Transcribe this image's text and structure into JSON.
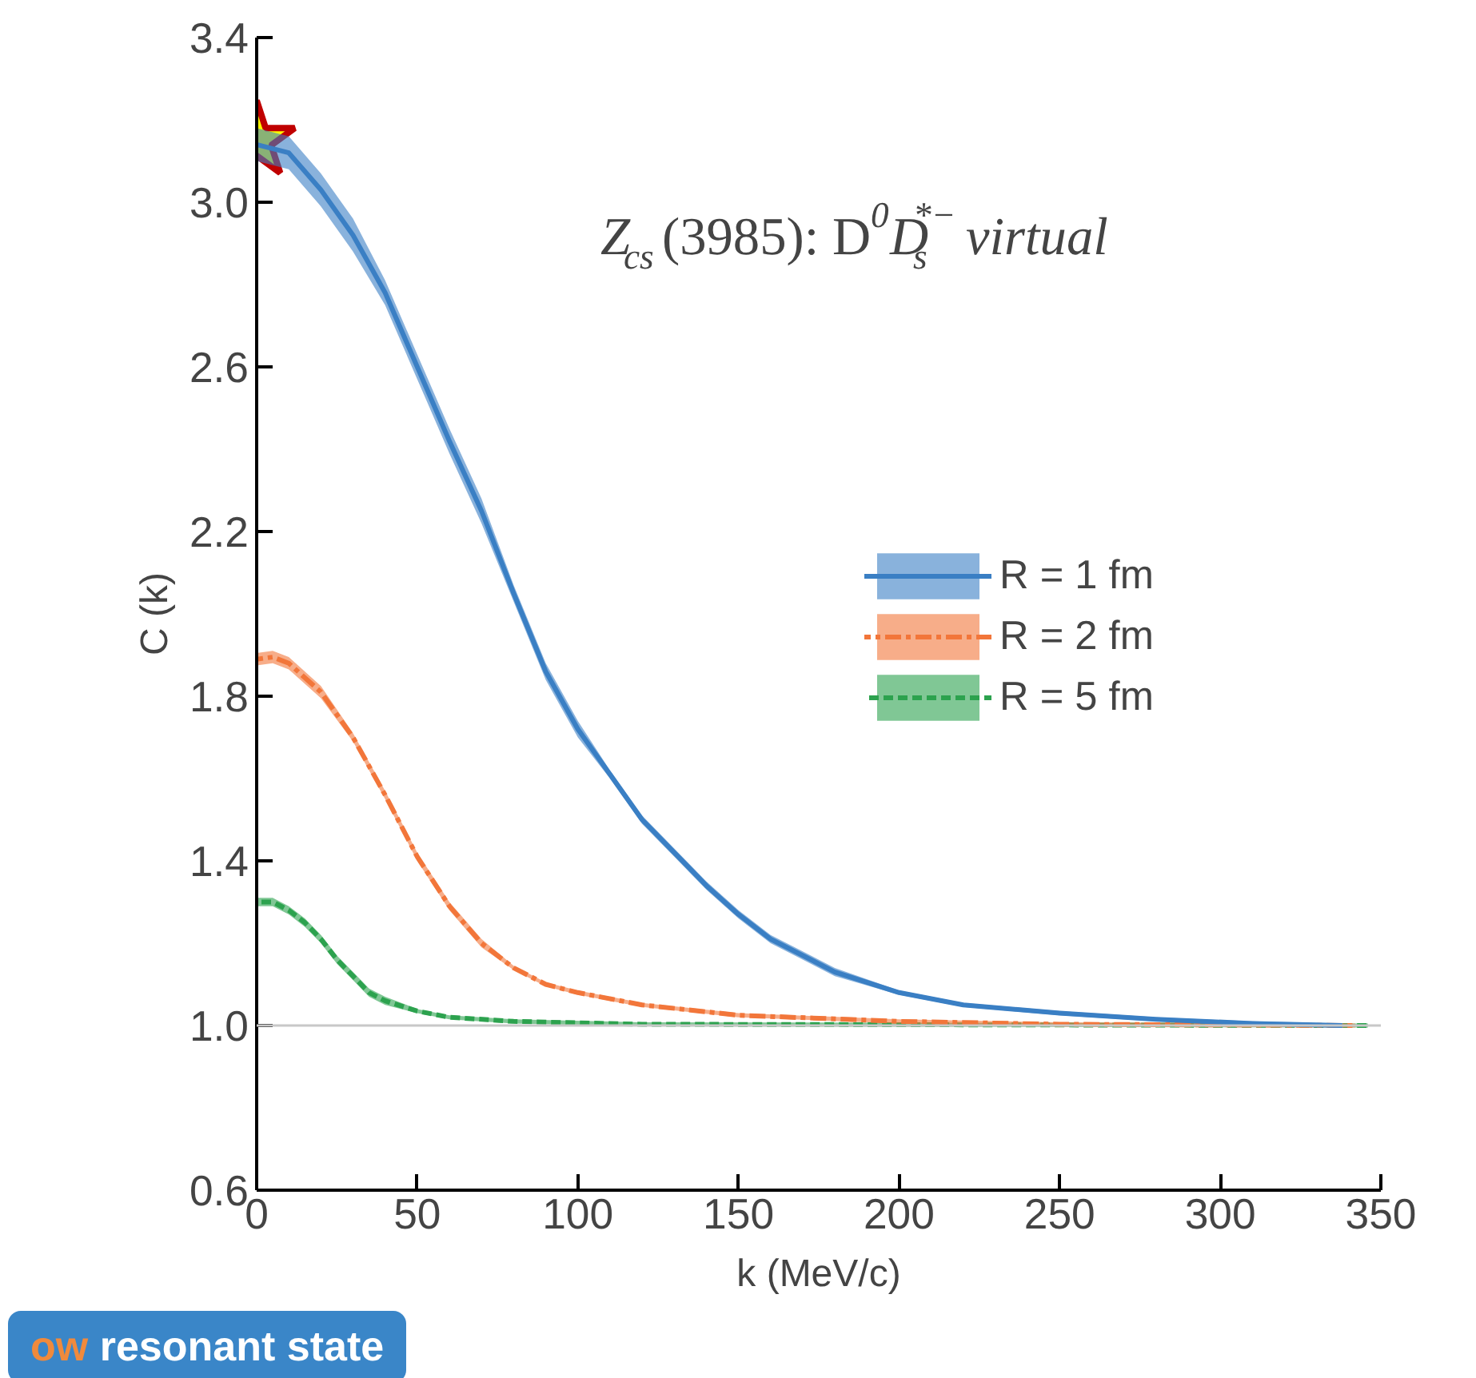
{
  "chart_data": {
    "type": "line",
    "title": "Z$_{cs}$(3985):  D$^{0}$D$_{s}$$^{*−}$ virtual",
    "xlabel": "k (MeV/c)",
    "ylabel": "C (k)",
    "xlim": [
      0,
      350
    ],
    "ylim": [
      0.6,
      3.4
    ],
    "xticks": [
      0,
      50,
      100,
      150,
      200,
      250,
      300,
      350
    ],
    "yticks": [
      {
        "value": 0.6,
        "label": "0.6"
      },
      {
        "value": 1.0,
        "label": "1.0"
      },
      1.4,
      1.8,
      2.2,
      2.6,
      {
        "value": 3.0,
        "label": "3.0"
      },
      3.4
    ],
    "grid": false,
    "legend": "right",
    "ref_lines": [
      {
        "axis": "y",
        "value": 1.0,
        "color": "#c8c8c8"
      }
    ],
    "annotations": [
      "ow resonant state"
    ],
    "series": [
      {
        "name": "R = 1 fm",
        "color": "#3a7fc4",
        "line_style": "solid",
        "x": [
          0,
          10,
          20,
          30,
          40,
          50,
          60,
          70,
          80,
          90,
          100,
          110,
          120,
          130,
          140,
          150,
          160,
          170,
          180,
          200,
          220,
          250,
          280,
          310,
          338
        ],
        "values": [
          3.14,
          3.12,
          3.03,
          2.92,
          2.78,
          2.6,
          2.42,
          2.25,
          2.05,
          1.86,
          1.72,
          1.61,
          1.5,
          1.42,
          1.34,
          1.27,
          1.21,
          1.17,
          1.13,
          1.08,
          1.05,
          1.03,
          1.015,
          1.005,
          1.0
        ],
        "lower": [
          3.1,
          3.08,
          2.99,
          2.88,
          2.75,
          2.57,
          2.39,
          2.22,
          2.03,
          1.84,
          1.7,
          1.6,
          1.49,
          1.41,
          1.33,
          1.26,
          1.2,
          1.16,
          1.12,
          1.075,
          1.045,
          1.025,
          1.01,
          1.0,
          0.995
        ],
        "upper": [
          3.18,
          3.16,
          3.07,
          2.96,
          2.81,
          2.63,
          2.45,
          2.28,
          2.07,
          1.88,
          1.74,
          1.62,
          1.51,
          1.43,
          1.35,
          1.28,
          1.22,
          1.18,
          1.14,
          1.085,
          1.055,
          1.035,
          1.02,
          1.01,
          1.005
        ]
      },
      {
        "name": "R = 2 fm",
        "color": "#f2763a",
        "line_style": "dashdot",
        "x": [
          0,
          5,
          10,
          20,
          30,
          40,
          50,
          60,
          70,
          80,
          90,
          100,
          120,
          150,
          200,
          250,
          342
        ],
        "values": [
          1.89,
          1.895,
          1.88,
          1.81,
          1.7,
          1.56,
          1.41,
          1.29,
          1.2,
          1.14,
          1.1,
          1.08,
          1.05,
          1.025,
          1.01,
          1.003,
          1.0
        ],
        "lower": [
          1.875,
          1.88,
          1.865,
          1.795,
          1.69,
          1.55,
          1.4,
          1.28,
          1.19,
          1.135,
          1.095,
          1.075,
          1.045,
          1.02,
          1.005,
          0.998,
          0.995
        ],
        "upper": [
          1.905,
          1.91,
          1.895,
          1.825,
          1.71,
          1.57,
          1.42,
          1.3,
          1.21,
          1.145,
          1.105,
          1.085,
          1.055,
          1.03,
          1.015,
          1.008,
          1.005
        ]
      },
      {
        "name": "R = 5 fm",
        "color": "#2ca24e",
        "line_style": "dashed",
        "x": [
          0,
          5,
          10,
          15,
          20,
          25,
          30,
          35,
          40,
          50,
          60,
          80,
          120,
          346
        ],
        "values": [
          1.3,
          1.3,
          1.28,
          1.25,
          1.21,
          1.16,
          1.12,
          1.08,
          1.06,
          1.035,
          1.02,
          1.01,
          1.003,
          1.0
        ],
        "lower": [
          1.29,
          1.29,
          1.27,
          1.24,
          1.2,
          1.15,
          1.11,
          1.07,
          1.05,
          1.03,
          1.015,
          1.005,
          0.998,
          0.995
        ],
        "upper": [
          1.31,
          1.31,
          1.29,
          1.26,
          1.22,
          1.17,
          1.13,
          1.09,
          1.07,
          1.04,
          1.025,
          1.015,
          1.008,
          1.005
        ]
      },
      {
        "type": "scatter",
        "marker": "star",
        "color": "#ffff00",
        "x": [
          0
        ],
        "values": [
          3.15
        ]
      }
    ]
  }
}
